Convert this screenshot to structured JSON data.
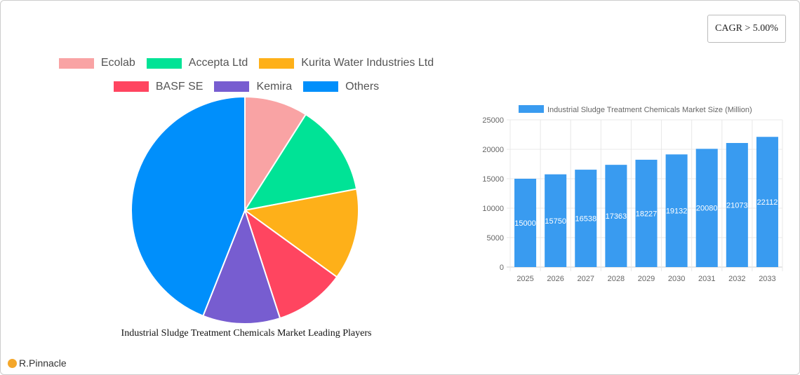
{
  "cagr": "CAGR > 5.00%",
  "brand": "R.Pinnacle",
  "chart_data": [
    {
      "type": "pie",
      "title": "Industrial Sludge Treatment Chemicals Market Leading Players",
      "labels": [
        "Ecolab",
        "Accepta Ltd",
        "Kurita Water Industries Ltd",
        "BASF SE",
        "Kemira",
        "Others"
      ],
      "values": [
        9,
        13,
        13,
        10,
        11,
        44
      ],
      "colors": [
        "#f9a3a4",
        "#00e396",
        "#feb019",
        "#ff4560",
        "#775dd0",
        "#008ffb"
      ],
      "legend": "top"
    },
    {
      "type": "bar",
      "series": [
        {
          "name": "Industrial Sludge Treatment Chemicals Market Size (Million)",
          "values": [
            15000,
            15750,
            16538,
            17363,
            18227,
            19132,
            20080,
            21073,
            22112
          ]
        }
      ],
      "categories": [
        "2025",
        "2026",
        "2027",
        "2028",
        "2029",
        "2030",
        "2031",
        "2032",
        "2033"
      ],
      "ylim": [
        0,
        25000
      ],
      "yticks": [
        0,
        5000,
        10000,
        15000,
        20000,
        25000
      ],
      "color": "#399bf0",
      "grid": true,
      "legend": "top"
    }
  ]
}
